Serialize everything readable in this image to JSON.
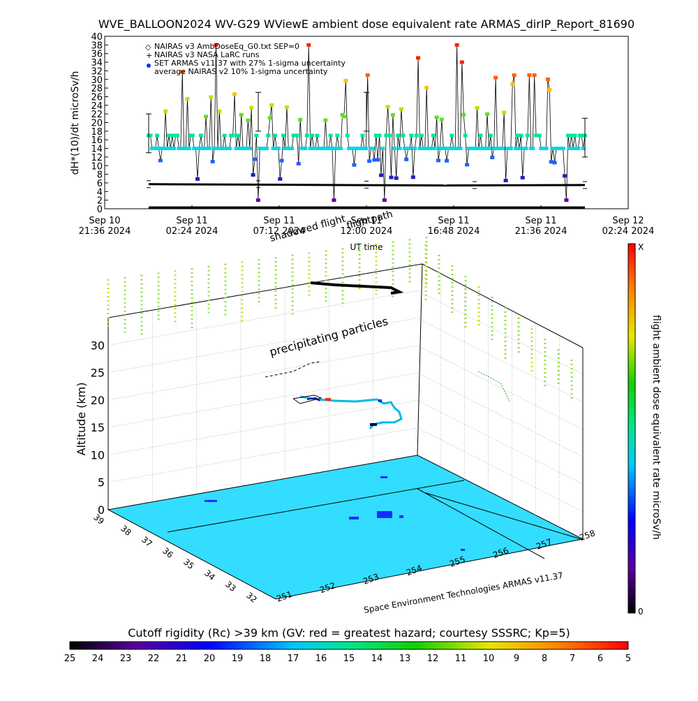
{
  "chart_data": [
    {
      "type": "scatter",
      "title": "WVE_BALLOON2024 WV-G29 WViewE ambient dose equivalent rate ARMAS_dirIP_Report_81690",
      "xlabel": "UT time",
      "ylabel": "dH*(10)/dt microSv/h",
      "ylim": [
        0,
        40
      ],
      "yticks": [
        "0",
        "2",
        "4",
        "6",
        "8",
        "10",
        "12",
        "14",
        "16",
        "18",
        "20",
        "22",
        "24",
        "26",
        "28",
        "30",
        "32",
        "34",
        "36",
        "38",
        "40"
      ],
      "xticks": [
        {
          "line1": "Sep 10",
          "line2": "21:36 2024"
        },
        {
          "line1": "Sep 11",
          "line2": "02:24 2024"
        },
        {
          "line1": "Sep 11",
          "line2": "07:12 2024"
        },
        {
          "line1": "Sep 11",
          "line2": "12:00 2024"
        },
        {
          "line1": "Sep 11",
          "line2": "16:48 2024"
        },
        {
          "line1": "Sep 11",
          "line2": "21:36 2024"
        },
        {
          "line1": "Sep 12",
          "line2": "02:24 2024"
        }
      ],
      "legend": [
        {
          "symbol": "◇",
          "label": "NAIRAS v3 AmbDoseEq_G0.txt SEP=0"
        },
        {
          "symbol": "+",
          "label": "NAIRAS v3 NASA LaRC runs"
        },
        {
          "symbol": "●",
          "label": "SET ARMAS v11.37 with 27% 1-sigma uncertainty"
        },
        {
          "symbol": "",
          "label": "average NAIRAS v2 10% 1-sigma uncertainty"
        }
      ],
      "legend_position": "top-left",
      "series": [
        {
          "values_estimate": "ARMAS dose rate mostly 14-18 microSv/h with frequent spikes to 20-38 and dips to 4-10"
        },
        {
          "values_estimate": "NAIRAS model level about 5.5 microSv/h"
        },
        {
          "values_estimate": "baseline about 0 microSv/h"
        }
      ]
    },
    {
      "type": "scatter",
      "title": "flight ambient dose equivalent rate microSv/h",
      "zlabel": "Altitude (km)",
      "zticks": [
        "0",
        "5",
        "10",
        "15",
        "20",
        "25",
        "30"
      ],
      "lat_ticks": [
        "38",
        "37",
        "36",
        "35",
        "34",
        "33",
        "32"
      ],
      "lat_top": "39",
      "lon_ticks": [
        "251",
        "252",
        "253",
        "254",
        "255",
        "256",
        "257",
        "258"
      ],
      "annotations": {
        "shadowed": "shadowed flight",
        "flightpath": "flightpath",
        "precip": "precipitating particles"
      },
      "credit": "Space Environment Technologies ARMAS v11.37",
      "colorbar_top": "X",
      "colorbar_bottom": "0"
    },
    {
      "type": "heatmap",
      "title": "Cutoff rigidity (Rc) >39 km (GV: red = greatest hazard; courtesy SSSRC; Kp=5)",
      "ticks": [
        "25",
        "24",
        "23",
        "22",
        "21",
        "20",
        "19",
        "18",
        "17",
        "16",
        "15",
        "14",
        "13",
        "12",
        "11",
        "10",
        "9",
        "8",
        "7",
        "6",
        "5"
      ]
    }
  ]
}
